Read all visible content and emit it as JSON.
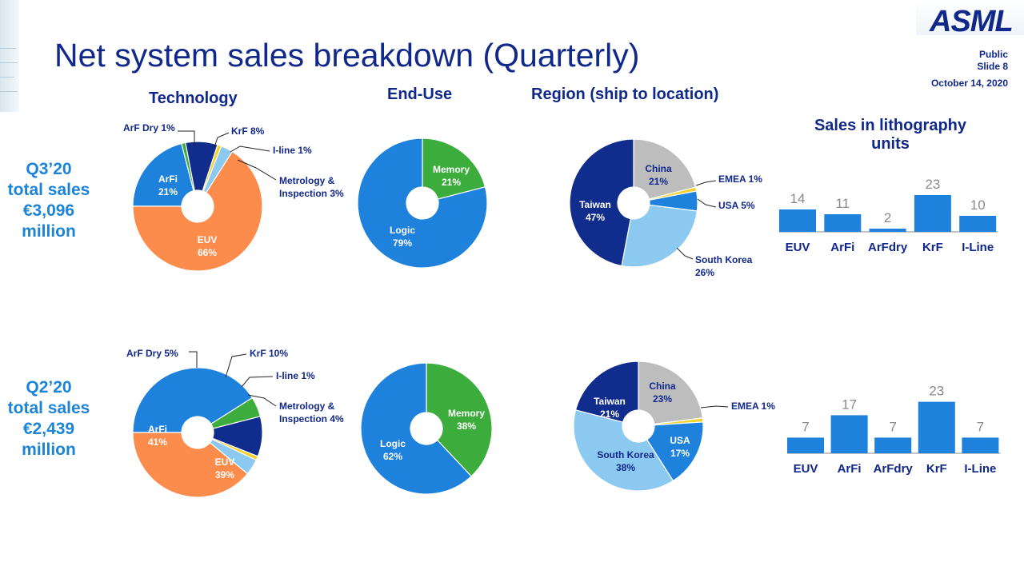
{
  "header": {
    "title": "Net system sales breakdown (Quarterly)",
    "logo": "ASML",
    "classification": "Public",
    "slide": "Slide 8",
    "date": "October 14, 2020"
  },
  "sections": {
    "technology": "Technology",
    "end_use": "End-Use",
    "region": "Region (ship to location)",
    "units_line1": "Sales in lithography",
    "units_line2": "units"
  },
  "quarters": [
    {
      "l1": "Q3’20",
      "l2": "total sales",
      "l3": "€3,096",
      "l4": "million"
    },
    {
      "l1": "Q2’20",
      "l2": "total sales",
      "l3": "€2,439",
      "l4": "million"
    }
  ],
  "colors": {
    "EUV": "#fc8c4c",
    "ArFi": "#1e82dc",
    "ArF Dry": "#3cad3c",
    "KrF": "#102c8c",
    "I-line": "#f4d22c",
    "Metrology & Inspection": "#8cc9f1",
    "Logic": "#1e82dc",
    "Memory": "#3cad3c",
    "Taiwan": "#102c8c",
    "China": "#bdbdbd",
    "EMEA": "#f4d22c",
    "USA": "#1e82dc",
    "South Korea": "#8cc9f1",
    "bar": "#1e82dc"
  },
  "chart_data": [
    {
      "type": "pie",
      "group": "technology",
      "quarter": "Q3’20",
      "slices": [
        {
          "label": "EUV",
          "value": 66,
          "text": "EUV",
          "pct": "66%"
        },
        {
          "label": "ArFi",
          "value": 21,
          "text": "ArFi",
          "pct": "21%"
        },
        {
          "label": "ArF Dry",
          "value": 1,
          "text": "ArF Dry 1%"
        },
        {
          "label": "KrF",
          "value": 8,
          "text": "KrF 8%"
        },
        {
          "label": "I-line",
          "value": 1,
          "text": "I-line 1%"
        },
        {
          "label": "Metrology & Inspection",
          "value": 3,
          "text": "Metrology &",
          "text2": "Inspection 3%"
        }
      ]
    },
    {
      "type": "pie",
      "group": "end_use",
      "quarter": "Q3’20",
      "slices": [
        {
          "label": "Memory",
          "value": 21,
          "text": "Memory",
          "pct": "21%"
        },
        {
          "label": "Logic",
          "value": 79,
          "text": "Logic",
          "pct": "79%"
        }
      ]
    },
    {
      "type": "pie",
      "group": "region",
      "quarter": "Q3’20",
      "slices": [
        {
          "label": "China",
          "value": 21,
          "text": "China",
          "pct": "21%"
        },
        {
          "label": "EMEA",
          "value": 1,
          "text": "EMEA 1%"
        },
        {
          "label": "USA",
          "value": 5,
          "text": "USA 5%"
        },
        {
          "label": "South Korea",
          "value": 26,
          "text": "South Korea",
          "pct": "26%"
        },
        {
          "label": "Taiwan",
          "value": 47,
          "text": "Taiwan",
          "pct": "47%"
        }
      ]
    },
    {
      "type": "bar",
      "group": "units",
      "quarter": "Q3’20",
      "categories": [
        "EUV",
        "ArFi",
        "ArFdry",
        "KrF",
        "I-Line"
      ],
      "values": [
        14,
        11,
        2,
        23,
        10
      ]
    },
    {
      "type": "pie",
      "group": "technology",
      "quarter": "Q2’20",
      "slices": [
        {
          "label": "EUV",
          "value": 39,
          "text": "EUV",
          "pct": "39%"
        },
        {
          "label": "ArFi",
          "value": 41,
          "text": "ArFi",
          "pct": "41%"
        },
        {
          "label": "ArF Dry",
          "value": 5,
          "text": "ArF Dry 5%"
        },
        {
          "label": "KrF",
          "value": 10,
          "text": "KrF 10%"
        },
        {
          "label": "I-line",
          "value": 1,
          "text": "I-line 1%"
        },
        {
          "label": "Metrology & Inspection",
          "value": 4,
          "text": "Metrology &",
          "text2": "Inspection 4%"
        }
      ]
    },
    {
      "type": "pie",
      "group": "end_use",
      "quarter": "Q2’20",
      "slices": [
        {
          "label": "Memory",
          "value": 38,
          "text": "Memory",
          "pct": "38%"
        },
        {
          "label": "Logic",
          "value": 62,
          "text": "Logic",
          "pct": "62%"
        }
      ]
    },
    {
      "type": "pie",
      "group": "region",
      "quarter": "Q2’20",
      "slices": [
        {
          "label": "China",
          "value": 23,
          "text": "China",
          "pct": "23%"
        },
        {
          "label": "EMEA",
          "value": 1,
          "text": "EMEA 1%"
        },
        {
          "label": "USA",
          "value": 17,
          "text": "USA",
          "pct": "17%"
        },
        {
          "label": "South Korea",
          "value": 38,
          "text": "South Korea",
          "pct": "38%"
        },
        {
          "label": "Taiwan",
          "value": 21,
          "text": "Taiwan",
          "pct": "21%"
        }
      ]
    },
    {
      "type": "bar",
      "group": "units",
      "quarter": "Q2’20",
      "categories": [
        "EUV",
        "ArFi",
        "ArFdry",
        "KrF",
        "I-Line"
      ],
      "values": [
        7,
        17,
        7,
        23,
        7
      ]
    }
  ]
}
